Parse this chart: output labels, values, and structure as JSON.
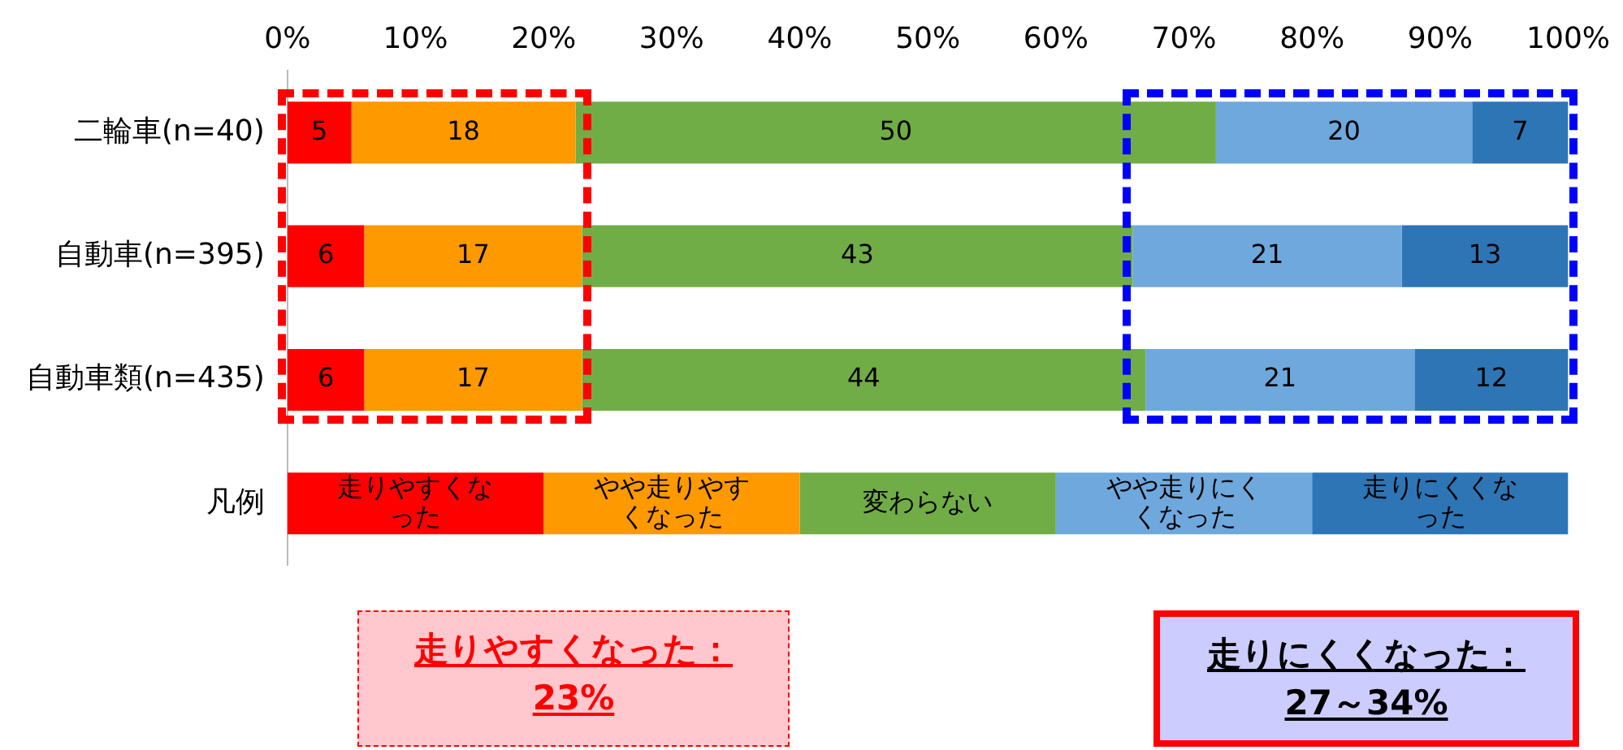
{
  "chart_data": {
    "type": "bar",
    "orientation": "horizontal",
    "stacked": true,
    "legend": false,
    "grid": false,
    "categories": [
      "二輪車(n=40)",
      "自動車(n=395)",
      "自動車類(n=435)",
      "凡例"
    ],
    "xlim": [
      0,
      100
    ],
    "xticks": [
      {
        "value": 0,
        "label": "0%"
      },
      {
        "value": 10,
        "label": "10%"
      },
      {
        "value": 20,
        "label": "20%"
      },
      {
        "value": 30,
        "label": "30%"
      },
      {
        "value": 40,
        "label": "40%"
      },
      {
        "value": 50,
        "label": "50%"
      },
      {
        "value": 60,
        "label": "60%"
      },
      {
        "value": 70,
        "label": "70%"
      },
      {
        "value": 80,
        "label": "80%"
      },
      {
        "value": 90,
        "label": "90%"
      },
      {
        "value": 100,
        "label": "100%"
      }
    ],
    "series": [
      {
        "color": "#ff0000",
        "values": [
          5,
          6,
          6,
          20
        ],
        "value_labels": [
          "5",
          "6",
          "6",
          "走りやすくなった"
        ]
      },
      {
        "color": "#ff9900",
        "values": [
          17.5,
          17,
          17,
          20
        ],
        "value_labels": [
          "18",
          "17",
          "17",
          "やや走りやすくなった"
        ]
      },
      {
        "color": "#70ad47",
        "values": [
          50,
          43,
          44,
          20
        ],
        "value_labels": [
          "50",
          "43",
          "44",
          "変わらない"
        ]
      },
      {
        "color": "#6fa8dc",
        "values": [
          20,
          21,
          21,
          20
        ],
        "value_labels": [
          "20",
          "21",
          "21",
          "やや走りにくくなった"
        ]
      },
      {
        "color": "#2e75b6",
        "values": [
          7.5,
          13,
          12,
          20
        ],
        "value_labels": [
          "7",
          "13",
          "12",
          "走りにくくなった"
        ]
      }
    ],
    "annotations": [
      "走りやすくなった：\n23%",
      "走りにくくなった：\n27～34%"
    ]
  }
}
